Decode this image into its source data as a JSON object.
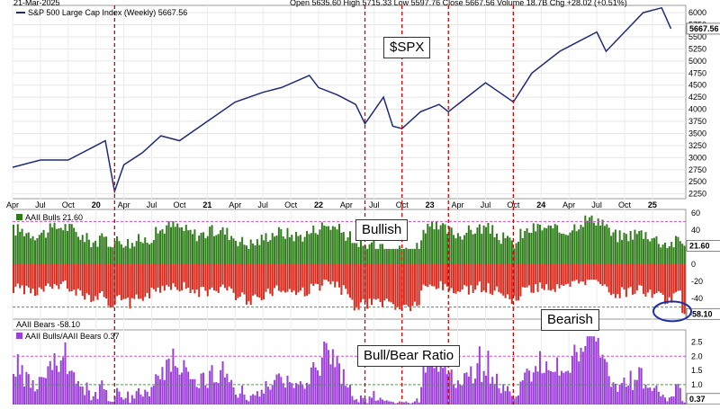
{
  "header": {
    "date": "21-Mar-2025",
    "ohlc_text": "Open 5635.60 High 5715.33 Low 5597.76 Close 5667.56 Volume 18.7B Chg +28.02 (+0.51%)"
  },
  "callouts": {
    "spx": "$SPX",
    "bullish": "Bullish",
    "bearish": "Bearish",
    "ratio": "Bull/Bear Ratio"
  },
  "colors": {
    "price_line": "#1f2a7a",
    "bulls_bar": "#2e7d1a",
    "bears_bar": "#d62b1e",
    "ratio_bar": "#9b3fd9",
    "event_line": "#d40000",
    "threshold_magenta": "#d24bd2",
    "threshold_green": "#3aa53a",
    "circle": "#1a2fa0"
  },
  "chart_data": [
    {
      "type": "line",
      "legend": "S&P 500 Large Cap Index (Weekly) 5667.56",
      "last_value_label": "5667.56",
      "x_ticks": [
        "Apr",
        "Jul",
        "Oct",
        "20",
        "Apr",
        "Jul",
        "Oct",
        "21",
        "Apr",
        "Jul",
        "Oct",
        "22",
        "Apr",
        "Jul",
        "Oct",
        "23",
        "Apr",
        "Jul",
        "Oct",
        "24",
        "Apr",
        "Jul",
        "Oct",
        "25"
      ],
      "y_ticks": [
        2250,
        2500,
        2750,
        3000,
        3250,
        3500,
        3750,
        4000,
        4250,
        4500,
        4750,
        5000,
        5250,
        5500,
        5750,
        6000
      ],
      "ylim": [
        2150,
        6150
      ],
      "x": [
        "2019-04",
        "2019-07",
        "2019-10",
        "2020-01",
        "2020-02",
        "2020-03",
        "2020-04",
        "2020-06",
        "2020-08",
        "2020-10",
        "2021-01",
        "2021-04",
        "2021-07",
        "2021-09",
        "2021-12",
        "2022-01",
        "2022-03",
        "2022-05",
        "2022-06",
        "2022-08",
        "2022-09",
        "2022-10",
        "2022-12",
        "2023-02",
        "2023-03",
        "2023-07",
        "2023-10",
        "2023-12",
        "2024-03",
        "2024-07",
        "2024-08",
        "2024-12",
        "2025-02",
        "2025-03"
      ],
      "y": [
        2800,
        2950,
        2950,
        3250,
        3350,
        2300,
        2850,
        3100,
        3450,
        3350,
        3750,
        4150,
        4350,
        4450,
        4700,
        4450,
        4300,
        4100,
        3700,
        4250,
        3650,
        3600,
        3950,
        4100,
        3950,
        4550,
        4150,
        4750,
        5200,
        5600,
        5200,
        6000,
        6100,
        5667.56
      ]
    },
    {
      "type": "bar",
      "legend": "AAII Bulls 21.60",
      "last_value_label": "21.60",
      "y_ticks": [
        60,
        40,
        20,
        0
      ],
      "ylim": [
        0,
        62
      ],
      "threshold": 50,
      "approx_range": [
        20,
        57
      ]
    },
    {
      "type": "bar",
      "legend": "AAII Bears -58.10",
      "last_value_label": "-58.10",
      "y_ticks": [
        -20,
        -40
      ],
      "ylim": [
        -62,
        0
      ],
      "threshold": -50,
      "approx_range": [
        -60,
        -20
      ]
    },
    {
      "type": "bar",
      "legend": "AAII Bulls/AAII Bears 0.37",
      "last_value_label": "0.37",
      "y_ticks": [
        2.5,
        2.0,
        1.5,
        1.0
      ],
      "ylim": [
        0.3,
        2.8
      ],
      "thresholds": [
        2.0,
        1.0
      ],
      "approx_range": [
        0.37,
        2.6
      ]
    }
  ],
  "event_dates": [
    "2020-03",
    "2022-06",
    "2022-10",
    "2023-03",
    "2023-10"
  ]
}
